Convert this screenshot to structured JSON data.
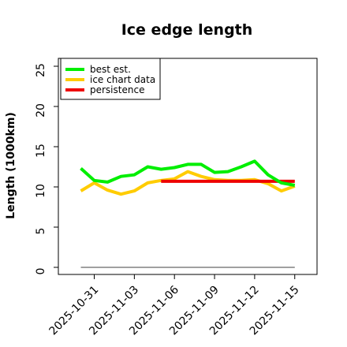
{
  "chart_data": {
    "type": "line",
    "title": "Ice edge length",
    "xlabel": "",
    "ylabel": "Length (1000km)",
    "ylim": [
      0,
      25
    ],
    "xlim": [
      "2025-10-29",
      "2025-11-15"
    ],
    "yticks": [
      0,
      5,
      10,
      15,
      20,
      25
    ],
    "xticks": [
      "2025-10-31",
      "2025-11-03",
      "2025-11-06",
      "2025-11-09",
      "2025-11-12",
      "2025-11-15"
    ],
    "legend_position": "top-left",
    "grid": false,
    "series": [
      {
        "name": "best est.",
        "color": "#00ee00",
        "x": [
          "2025-10-30",
          "2025-10-31",
          "2025-11-01",
          "2025-11-02",
          "2025-11-03",
          "2025-11-04",
          "2025-11-05",
          "2025-11-06",
          "2025-11-07",
          "2025-11-08",
          "2025-11-09",
          "2025-11-10",
          "2025-11-11",
          "2025-11-12",
          "2025-11-13",
          "2025-11-14",
          "2025-11-15"
        ],
        "values": [
          12.3,
          10.8,
          10.6,
          11.3,
          11.5,
          12.5,
          12.2,
          12.4,
          12.8,
          12.8,
          11.8,
          11.9,
          12.5,
          13.2,
          11.5,
          10.5,
          10.2
        ]
      },
      {
        "name": "ice chart data",
        "color": "#ffcc00",
        "x": [
          "2025-10-30",
          "2025-10-31",
          "2025-11-01",
          "2025-11-02",
          "2025-11-03",
          "2025-11-04",
          "2025-11-05",
          "2025-11-06",
          "2025-11-07",
          "2025-11-08",
          "2025-11-09",
          "2025-11-10",
          "2025-11-11",
          "2025-11-12",
          "2025-11-13",
          "2025-11-14",
          "2025-11-15"
        ],
        "values": [
          9.5,
          10.5,
          9.6,
          9.1,
          9.5,
          10.5,
          10.8,
          11.0,
          11.9,
          11.3,
          10.9,
          10.8,
          10.8,
          10.9,
          10.4,
          9.5,
          10.1
        ]
      },
      {
        "name": "persistence",
        "color": "#ee0000",
        "x": [
          "2025-11-05",
          "2025-11-15"
        ],
        "values": [
          10.7,
          10.7
        ]
      },
      {
        "name": "",
        "color": "#808080",
        "x": [
          "2025-10-30",
          "2025-11-15"
        ],
        "values": [
          0,
          0
        ]
      }
    ]
  }
}
